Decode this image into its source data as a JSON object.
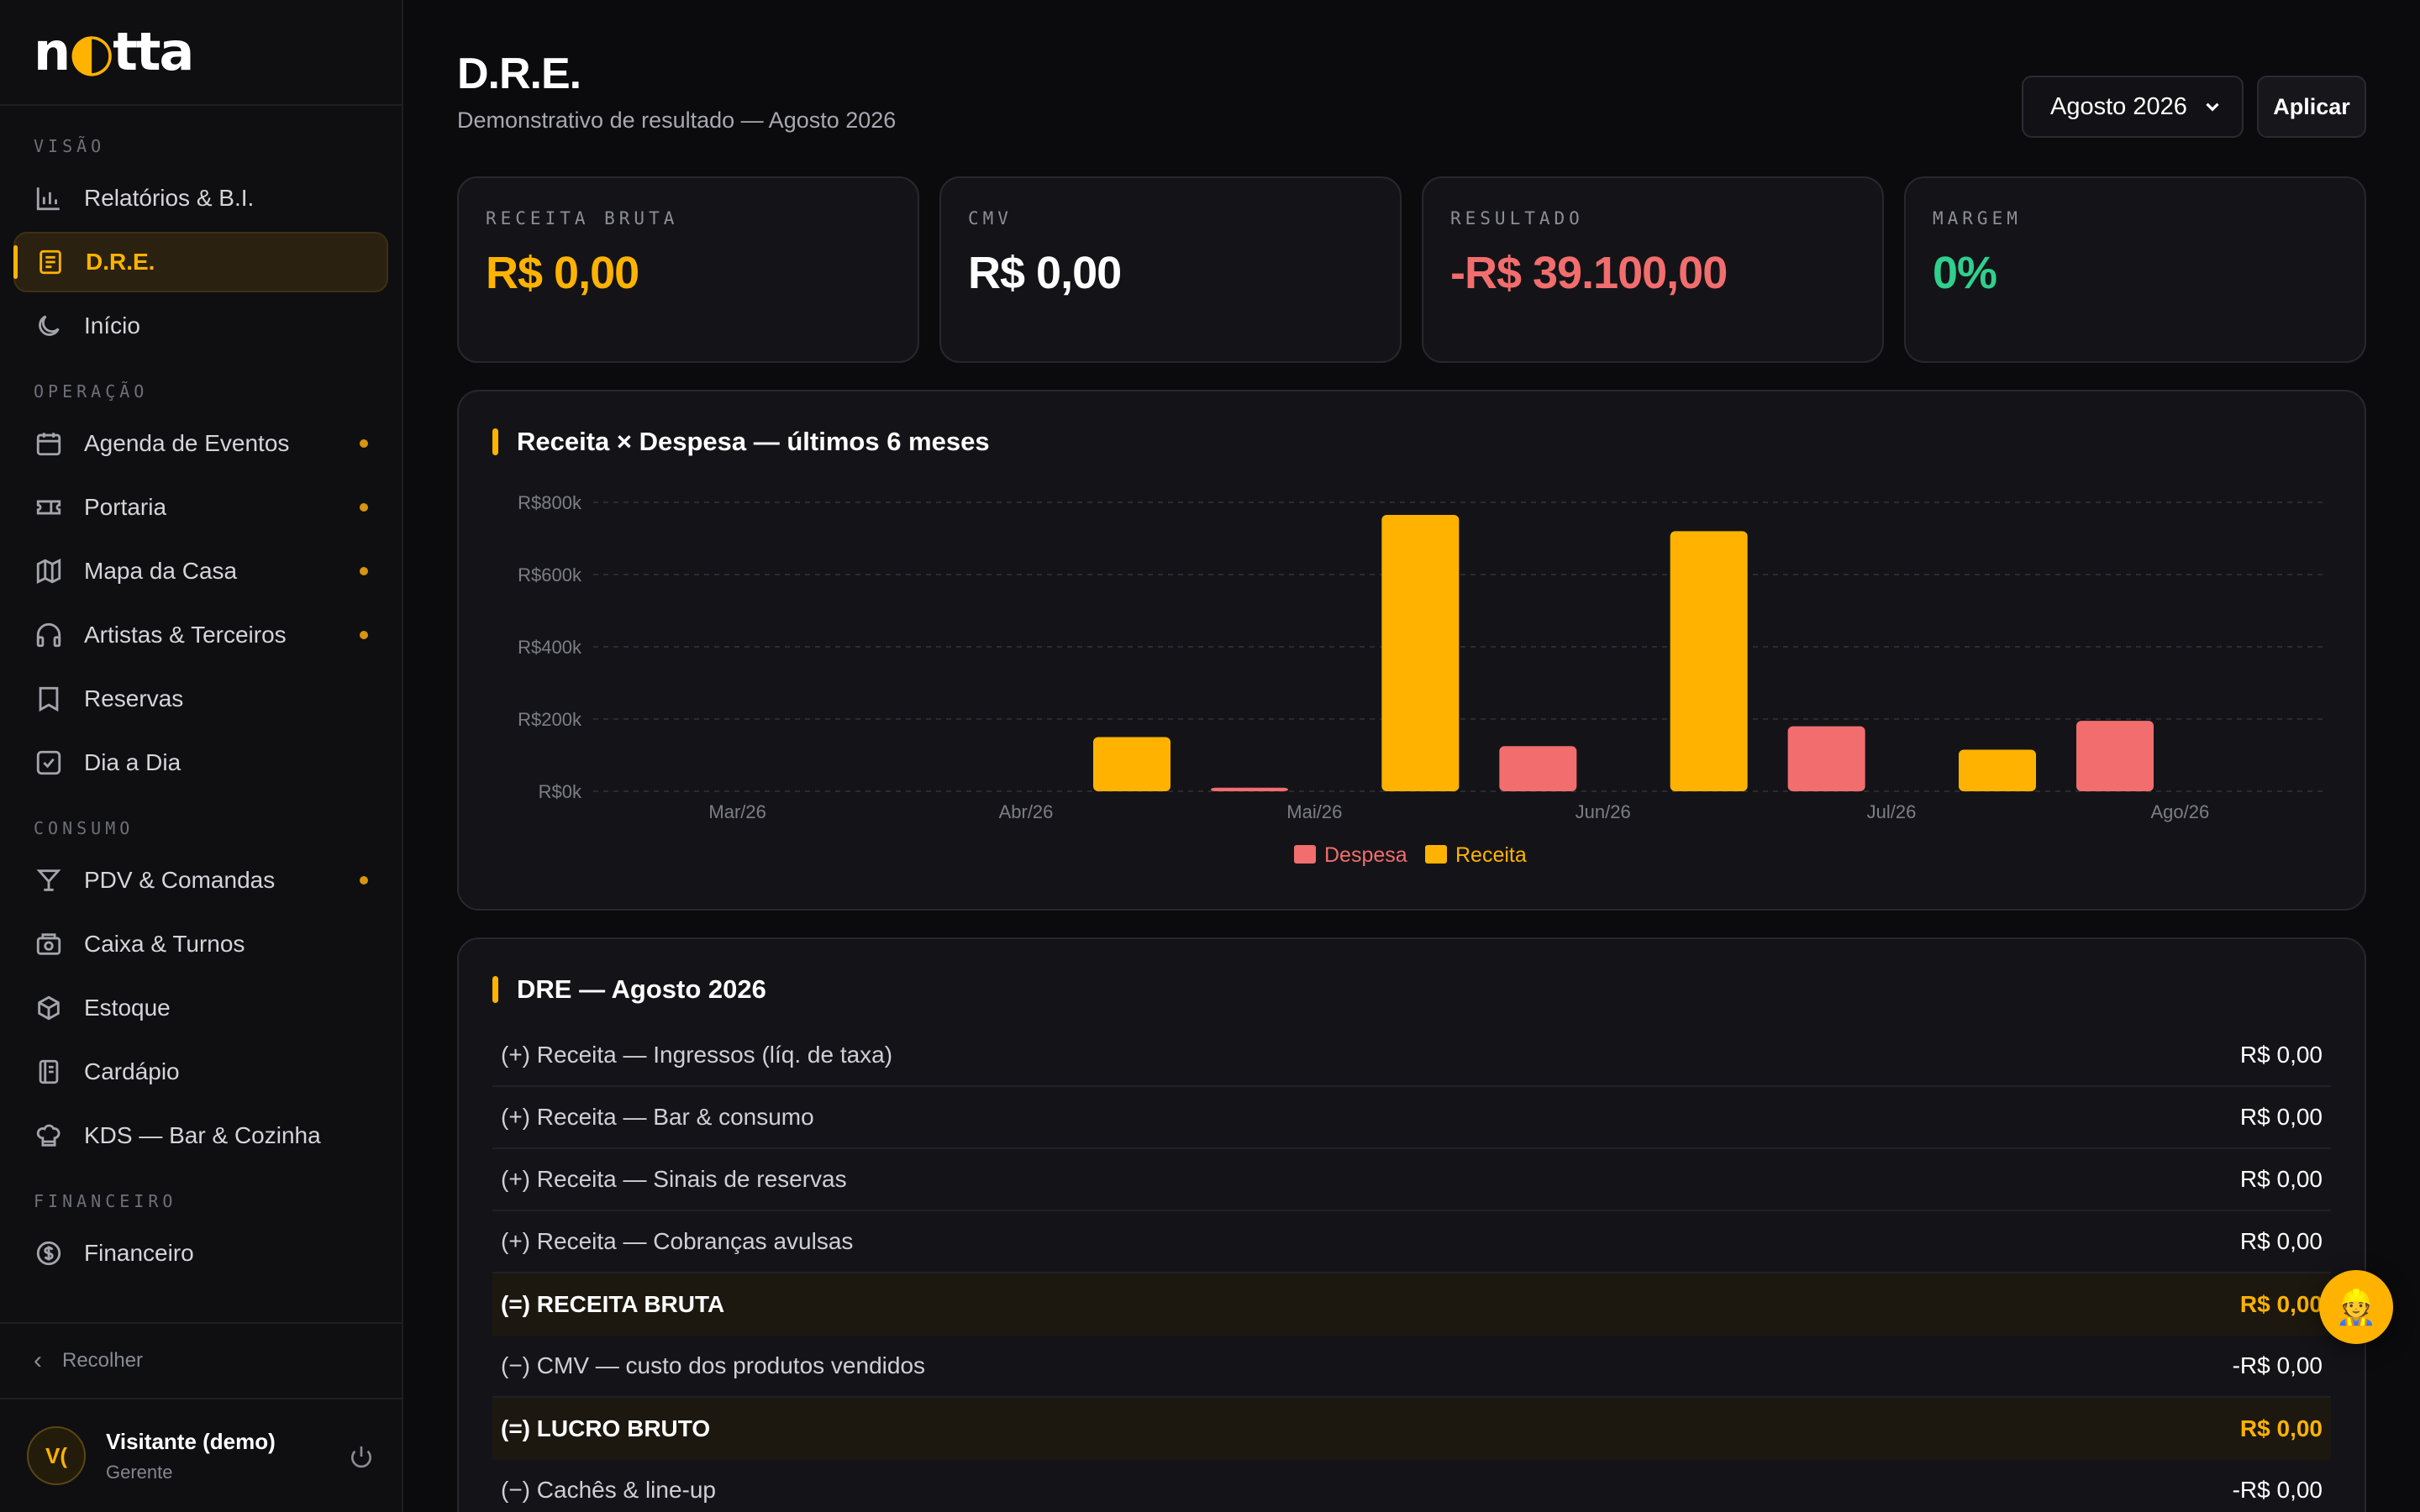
{
  "app": {
    "logo_text": "notta",
    "logo_moon": "o"
  },
  "sidebar": {
    "sections": {
      "visao": "VISÃO",
      "operacao": "OPERAÇÃO",
      "consumo": "CONSUMO",
      "financeiro": "FINANCEIRO"
    },
    "items": {
      "relatorios": "Relatórios & B.I.",
      "dre": "D.R.E.",
      "inicio": "Início",
      "agenda": "Agenda de Eventos",
      "portaria": "Portaria",
      "mapa": "Mapa da Casa",
      "artistas": "Artistas & Terceiros",
      "reservas": "Reservas",
      "diaadia": "Dia a Dia",
      "pdv": "PDV & Comandas",
      "caixa": "Caixa & Turnos",
      "estoque": "Estoque",
      "cardapio": "Cardápio",
      "kds": "KDS — Bar & Cozinha",
      "financeiro": "Financeiro"
    },
    "collapse_label": "Recolher",
    "user": {
      "initials": "V(",
      "name": "Visitante (demo)",
      "role": "Gerente"
    }
  },
  "header": {
    "title": "D.R.E.",
    "subtitle": "Demonstrativo de resultado — Agosto 2026",
    "period_value": "Agosto 2026",
    "apply_label": "Aplicar"
  },
  "kpis": {
    "receita": {
      "label": "RECEITA BRUTA",
      "value": "R$ 0,00",
      "color": "#ffb300"
    },
    "cmv": {
      "label": "CMV",
      "value": "R$ 0,00",
      "color": "#ffffff"
    },
    "resultado": {
      "label": "RESULTADO",
      "value": "-R$ 39.100,00",
      "color": "#f26d6d"
    },
    "margem": {
      "label": "MARGEM",
      "value": "0%",
      "color": "#2fcf8e"
    }
  },
  "chart_card": {
    "title": "Receita × Despesa — últimos 6 meses"
  },
  "chart_data": {
    "type": "bar",
    "title": "Receita × Despesa — últimos 6 meses",
    "categories": [
      "Mar/26",
      "Abr/26",
      "Mai/26",
      "Jun/26",
      "Jul/26",
      "Ago/26"
    ],
    "series": [
      {
        "name": "Receita",
        "color": "#ffb300",
        "values": [
          0,
          150000,
          765000,
          720000,
          115000,
          0
        ]
      },
      {
        "name": "Despesa",
        "color": "#f26d6d",
        "values": [
          0,
          10000,
          125000,
          180000,
          195000,
          39100
        ]
      }
    ],
    "y_ticks": [
      "R$0k",
      "R$200k",
      "R$400k",
      "R$600k",
      "R$800k"
    ],
    "ylim": [
      0,
      800000
    ],
    "legend": [
      "Despesa",
      "Receita"
    ],
    "legend_position": "bottom-center",
    "grid": true
  },
  "dre": {
    "title": "DRE — Agosto 2026",
    "rows": [
      {
        "label": "(+) Receita — Ingressos (líq. de taxa)",
        "value": "R$ 0,00"
      },
      {
        "label": "(+) Receita — Bar & consumo",
        "value": "R$ 0,00"
      },
      {
        "label": "(+) Receita — Sinais de reservas",
        "value": "R$ 0,00"
      },
      {
        "label": "(+) Receita — Cobranças avulsas",
        "value": "R$ 0,00"
      },
      {
        "label": "(=) RECEITA BRUTA",
        "value": "R$ 0,00"
      },
      {
        "label": "(−) CMV — custo dos produtos vendidos",
        "value": "-R$ 0,00"
      },
      {
        "label": "(=) LUCRO BRUTO",
        "value": "R$ 0,00"
      },
      {
        "label": "(−) Cachês & line-up",
        "value": "-R$ 0,00"
      }
    ]
  },
  "fab": {
    "icon": "assistant-icon",
    "glyph": "👷"
  },
  "colors": {
    "accent": "#ffb300",
    "danger": "#f26d6d",
    "success": "#2fcf8e"
  }
}
